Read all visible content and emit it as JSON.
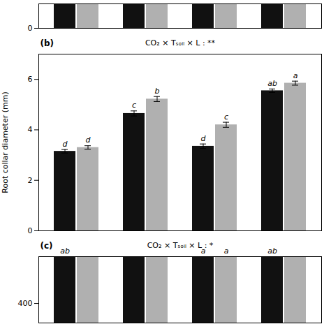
{
  "chart_data": [
    {
      "type": "bar",
      "categories": [
        null,
        null,
        null,
        null
      ],
      "ylim": [
        0,
        14
      ],
      "yticks": [
        0
      ],
      "tick_labels": "y",
      "series": [
        {
          "color": "#111111",
          "values": [
            14,
            14,
            14,
            14
          ]
        },
        {
          "color": "#b0b0b0",
          "values": [
            14,
            14,
            14,
            14
          ]
        }
      ]
    },
    {
      "type": "bar",
      "title": "(b)",
      "annotation": "CO₂ × Tₛₒᵢₗ × L : **",
      "ylabel": "Root collar diameter (mm)",
      "categories": [
        null,
        null,
        null,
        null
      ],
      "ylim": [
        0,
        7
      ],
      "yticks": [
        0,
        2,
        4,
        6
      ],
      "tick_labels": "y",
      "series": [
        {
          "color": "#111111",
          "values": [
            3.15,
            4.65,
            3.35,
            5.55
          ],
          "errors": [
            0.07,
            0.1,
            0.09,
            0.07
          ],
          "labels": [
            "d",
            "c",
            "d",
            "ab"
          ]
        },
        {
          "color": "#b0b0b0",
          "values": [
            3.3,
            5.22,
            4.2,
            5.85
          ],
          "errors": [
            0.07,
            0.1,
            0.1,
            0.08
          ],
          "labels": [
            "d",
            "b",
            "c",
            "a"
          ]
        }
      ]
    },
    {
      "type": "bar",
      "title": "(c)",
      "annotation": "CO₂ × Tₛₒᵢₗ × L : *",
      "categories": [
        null,
        null,
        null,
        null
      ],
      "ylim": [
        350,
        520
      ],
      "yticks": [
        400
      ],
      "tick_labels": "y",
      "series": [
        {
          "color": "#111111",
          "values": [
            520,
            520,
            520,
            520
          ],
          "labels": [
            "ab",
            null,
            "a",
            "ab"
          ]
        },
        {
          "color": "#b0b0b0",
          "values": [
            520,
            520,
            520,
            520
          ],
          "labels": [
            null,
            null,
            "a",
            null
          ]
        }
      ]
    }
  ]
}
